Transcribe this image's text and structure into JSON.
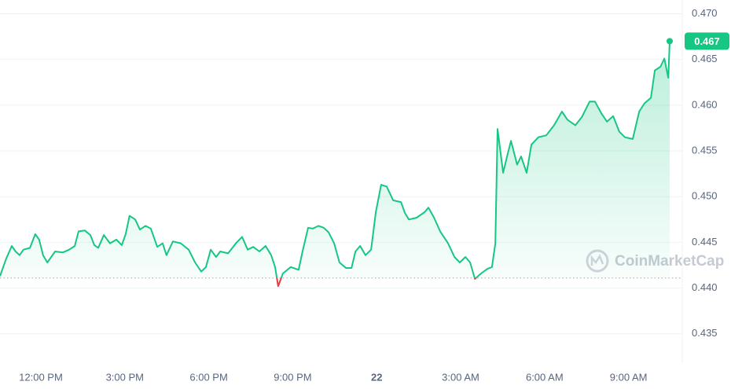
{
  "chart_data": {
    "type": "line",
    "x": [
      10.54,
      10.76,
      10.96,
      11.1,
      11.24,
      11.38,
      11.61,
      11.8,
      11.94,
      12.08,
      12.23,
      12.51,
      12.79,
      13.01,
      13.21,
      13.35,
      13.57,
      13.77,
      13.91,
      14.05,
      14.25,
      14.47,
      14.7,
      14.89,
      15.03,
      15.17,
      15.37,
      15.54,
      15.74,
      15.93,
      16.16,
      16.35,
      16.49,
      16.72,
      17.0,
      17.28,
      17.51,
      17.73,
      17.9,
      18.07,
      18.26,
      18.41,
      18.69,
      18.97,
      19.19,
      19.39,
      19.59,
      19.81,
      20.03,
      20.23,
      20.37,
      20.48,
      20.65,
      20.93,
      21.21,
      21.35,
      21.55,
      21.72,
      21.92,
      22.11,
      22.28,
      22.48,
      22.67,
      22.9,
      23.1,
      23.24,
      23.41,
      23.6,
      23.8,
      23.97,
      24.16,
      24.36,
      24.59,
      24.87,
      25.01,
      25.15,
      25.43,
      25.71,
      25.85,
      26.05,
      26.27,
      26.55,
      26.78,
      26.97,
      27.17,
      27.34,
      27.51,
      27.73,
      27.96,
      28.12,
      28.24,
      28.32,
      28.52,
      28.66,
      28.8,
      29.02,
      29.16,
      29.36,
      29.53,
      29.78,
      30.06,
      30.34,
      30.62,
      30.82,
      31.1,
      31.33,
      31.61,
      31.8,
      32.03,
      32.23,
      32.45,
      32.67,
      32.87,
      33.15,
      33.38,
      33.57,
      33.8,
      33.94,
      34.14,
      34.28,
      34.42,
      34.47
    ],
    "values": [
      0.4413,
      0.4432,
      0.4446,
      0.444,
      0.4436,
      0.4442,
      0.4444,
      0.4459,
      0.4453,
      0.4436,
      0.4428,
      0.444,
      0.4439,
      0.4442,
      0.4446,
      0.4462,
      0.4463,
      0.4458,
      0.4447,
      0.4444,
      0.4458,
      0.4449,
      0.4453,
      0.4447,
      0.4459,
      0.4479,
      0.4475,
      0.4464,
      0.4468,
      0.4465,
      0.4445,
      0.4449,
      0.4436,
      0.4451,
      0.4449,
      0.4442,
      0.4428,
      0.4418,
      0.4423,
      0.4442,
      0.4434,
      0.444,
      0.4438,
      0.4449,
      0.4456,
      0.4442,
      0.4445,
      0.444,
      0.4446,
      0.4436,
      0.4423,
      0.4402,
      0.4416,
      0.4423,
      0.442,
      0.444,
      0.4466,
      0.4465,
      0.4468,
      0.4466,
      0.4461,
      0.4449,
      0.4428,
      0.4422,
      0.4422,
      0.444,
      0.4446,
      0.4436,
      0.4442,
      0.4483,
      0.4513,
      0.4511,
      0.4496,
      0.4494,
      0.4482,
      0.4475,
      0.4477,
      0.4483,
      0.4488,
      0.4477,
      0.4462,
      0.4449,
      0.4434,
      0.4428,
      0.4434,
      0.4428,
      0.441,
      0.4416,
      0.4421,
      0.4423,
      0.4449,
      0.4574,
      0.4526,
      0.4544,
      0.4561,
      0.4535,
      0.4544,
      0.4526,
      0.4557,
      0.4565,
      0.4567,
      0.4578,
      0.4593,
      0.4584,
      0.4578,
      0.4587,
      0.4604,
      0.4604,
      0.4591,
      0.4582,
      0.4588,
      0.4571,
      0.4565,
      0.4563,
      0.4593,
      0.4602,
      0.4608,
      0.4638,
      0.4642,
      0.4651,
      0.463,
      0.467
    ],
    "color": "#16c784",
    "down_color": "#ea3943",
    "baseline": 0.4411,
    "xlim": [
      10.54,
      34.92
    ],
    "xticks": [
      {
        "value": 12,
        "label": "12:00 PM"
      },
      {
        "value": 15,
        "label": "3:00 PM"
      },
      {
        "value": 18,
        "label": "6:00 PM"
      },
      {
        "value": 21,
        "label": "9:00 PM"
      },
      {
        "value": 24,
        "label": "22"
      },
      {
        "value": 27,
        "label": "3:00 AM"
      },
      {
        "value": 30,
        "label": "6:00 AM"
      },
      {
        "value": 33,
        "label": "9:00 AM"
      }
    ],
    "ylim": [
      0.4318,
      0.4715
    ],
    "yticks": [
      {
        "value": 0.435,
        "label": "0.435"
      },
      {
        "value": 0.44,
        "label": "0.440"
      },
      0.445,
      {
        "value": 0.45,
        "label": "0.450"
      },
      0.455,
      {
        "value": 0.46,
        "label": "0.460"
      },
      0.465,
      {
        "value": 0.47,
        "label": "0.470"
      }
    ],
    "grid": true,
    "watermark": "CoinMarketCap"
  }
}
